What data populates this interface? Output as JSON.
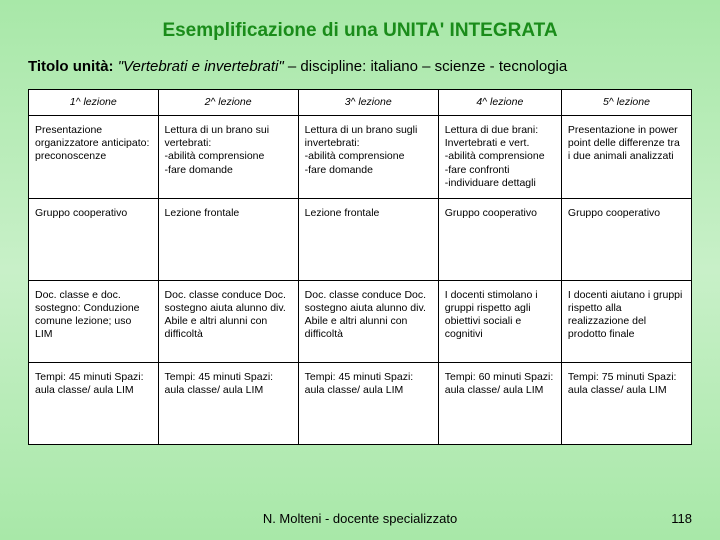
{
  "title": "Esemplificazione di una UNITA' INTEGRATA",
  "subtitle_prefix": "Titolo unità: ",
  "subtitle_italic": "\"Vertebrati e  invertebrati\"",
  "subtitle_suffix": " – discipline: italiano – scienze - tecnologia",
  "table": {
    "columns": [
      "1^ lezione",
      "2^ lezione",
      "3^ lezione",
      "4^ lezione",
      "5^ lezione"
    ],
    "rows": [
      [
        "Presentazione organizzatore anticipato: preconoscenze",
        "Lettura di un brano sui vertebrati:\n-abilità comprensione\n-fare domande",
        "Lettura di un brano sugli  invertebrati:\n-abilità comprensione\n-fare domande",
        "Lettura di due brani: Invertebrati e vert.\n-abilità comprensione\n-fare confronti\n-individuare dettagli",
        "Presentazione in power point delle differenze tra i due animali analizzati"
      ],
      [
        "Gruppo cooperativo",
        "Lezione frontale",
        "Lezione frontale",
        "Gruppo cooperativo",
        "Gruppo cooperativo"
      ],
      [
        "Doc. classe e doc. sostegno: Conduzione comune lezione; uso LIM",
        "Doc. classe conduce Doc. sostegno aiuta alunno div. Abile e altri alunni con difficoltà",
        "Doc. classe conduce Doc. sostegno aiuta alunno div. Abile e altri alunni con difficoltà",
        "I docenti stimolano i gruppi rispetto agli obiettivi sociali e cognitivi",
        "I docenti aiutano i gruppi rispetto alla realizzazione del prodotto finale"
      ],
      [
        "Tempi: 45 minuti Spazi: aula classe/ aula LIM",
        "Tempi: 45 minuti Spazi: aula classe/ aula LIM",
        "Tempi: 45 minuti Spazi: aula classe/ aula LIM",
        "Tempi: 60 minuti Spazi: aula classe/ aula LIM",
        "Tempi: 75 minuti Spazi: aula classe/ aula LIM"
      ]
    ]
  },
  "footer": "N. Molteni - docente specializzato",
  "page_number": "118",
  "colors": {
    "title_color": "#1a8c1a",
    "bg_top": "#a8e8a8",
    "bg_mid": "#c8f0c8",
    "border": "#000000",
    "cell_bg": "#ffffff"
  }
}
